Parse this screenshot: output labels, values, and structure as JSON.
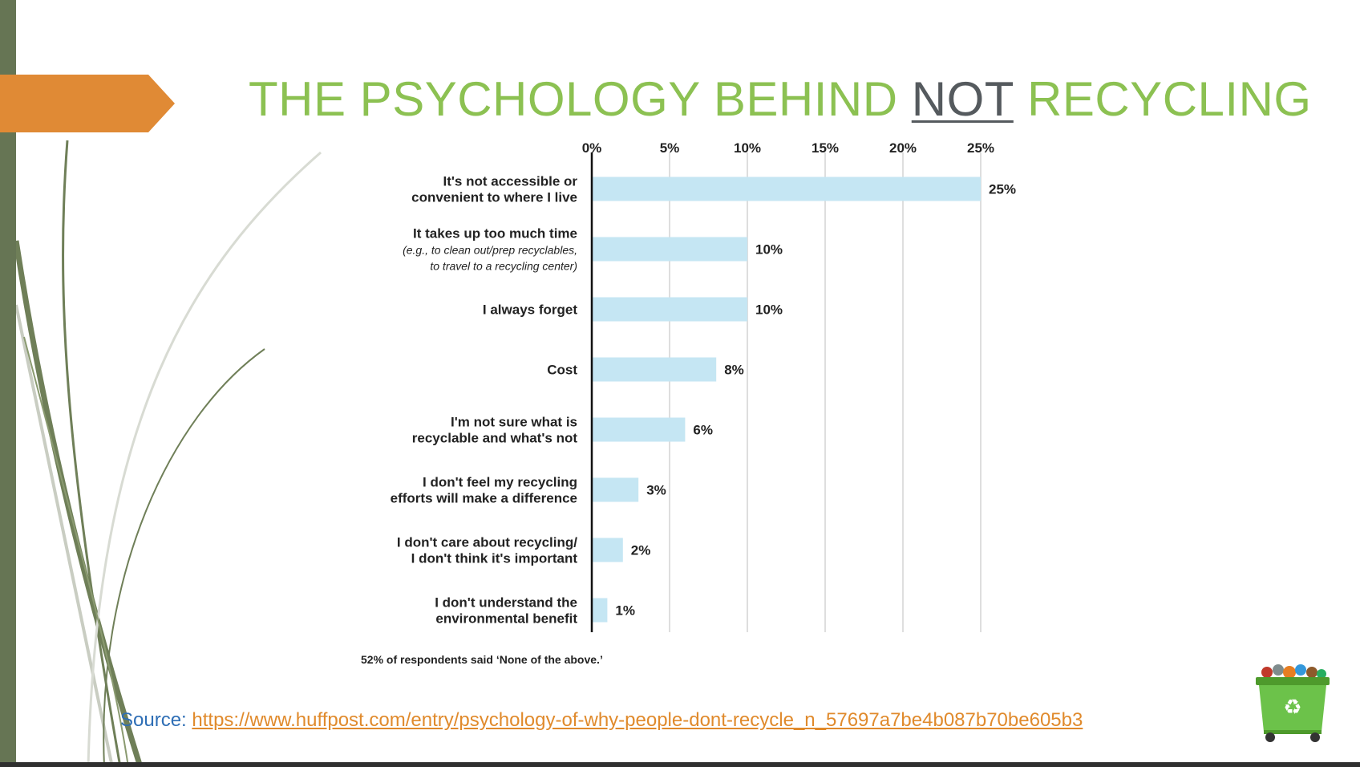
{
  "slide": {
    "title_part1": "THE PSYCHOLOGY BEHIND ",
    "title_emph": "NOT",
    "title_part2": " RECYCLING",
    "footnote": "52% of respondents said ‘None of the above.’",
    "source_label": "Source: ",
    "source_url": "https://www.huffpost.com/entry/psychology-of-why-people-dont-recycle_n_57697a7be4b087b70be605b3",
    "colors": {
      "title": "#8cc152",
      "emph": "#555a5e",
      "tab": "#e08a35",
      "left_bar": "#667554",
      "bar": "#c5e6f3"
    },
    "icons": {
      "bin": "recycling-bin-icon"
    }
  },
  "chart_data": {
    "type": "bar",
    "orientation": "horizontal",
    "x_ticks": [
      "0%",
      "5%",
      "10%",
      "15%",
      "20%",
      "25%"
    ],
    "xlim": [
      0,
      25
    ],
    "grid": true,
    "categories": [
      {
        "lines": [
          "It's not accessible or",
          "convenient to where I live"
        ],
        "sub": [],
        "value": 25,
        "label": "25%"
      },
      {
        "lines": [
          "It takes up too much time"
        ],
        "sub": [
          "(e.g., to clean out/prep recyclables,",
          "to travel to a recycling center)"
        ],
        "value": 10,
        "label": "10%"
      },
      {
        "lines": [
          "I always forget"
        ],
        "sub": [],
        "value": 10,
        "label": "10%"
      },
      {
        "lines": [
          "Cost"
        ],
        "sub": [],
        "value": 8,
        "label": "8%"
      },
      {
        "lines": [
          "I'm not sure what is",
          "recyclable and what's not"
        ],
        "sub": [],
        "value": 6,
        "label": "6%"
      },
      {
        "lines": [
          "I don't feel my recycling",
          "efforts will make a difference"
        ],
        "sub": [],
        "value": 3,
        "label": "3%"
      },
      {
        "lines": [
          "I don't care about recycling/",
          "I don't think it's important"
        ],
        "sub": [],
        "value": 2,
        "label": "2%"
      },
      {
        "lines": [
          "I don't understand the",
          "environmental benefit"
        ],
        "sub": [],
        "value": 1,
        "label": "1%"
      }
    ]
  }
}
